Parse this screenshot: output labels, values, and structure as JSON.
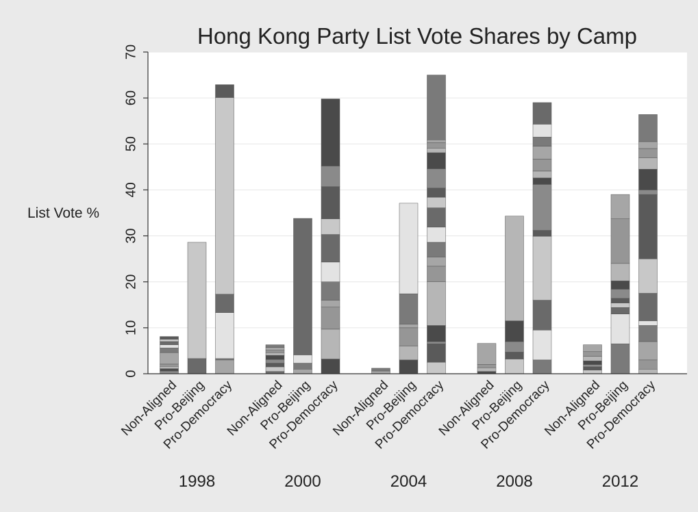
{
  "chart_data": {
    "type": "bar",
    "stacked": true,
    "title": "Hong Kong Party List Vote Shares by Camp",
    "ylabel": "List Vote %",
    "xlabel": "",
    "ylim": [
      0,
      70
    ],
    "yticks": [
      0,
      10,
      20,
      30,
      40,
      50,
      60,
      70
    ],
    "grid": true,
    "legend": "none",
    "colors": {
      "background": "#eaeaea",
      "plot": "#ffffff",
      "grid": "#e6e6e6",
      "palette": [
        "#8a8a8a",
        "#6a6a6a",
        "#a6a6a6",
        "#4a4a4a",
        "#c8c8c8",
        "#7a7a7a",
        "#b6b6b6",
        "#5a5a5a",
        "#e3e3e3",
        "#969696"
      ]
    },
    "groups": [
      {
        "year": "1998",
        "bars": [
          {
            "category": "Non-Aligned",
            "segments": [
              0.6,
              0.5,
              0.5,
              0.5,
              2.5,
              1.0,
              0.7,
              0.7,
              0.5,
              0.6
            ]
          },
          {
            "category": "Pro-Beijing",
            "segments": [
              3.3,
              25.3
            ]
          },
          {
            "category": "Pro-Democracy",
            "segments": [
              3.0,
              0.3,
              10.0,
              4.0,
              42.8,
              2.8
            ]
          }
        ]
      },
      {
        "year": "2000",
        "bars": [
          {
            "category": "Non-Aligned",
            "segments": [
              0.5,
              1.0,
              0.8,
              0.8,
              0.9,
              0.6,
              0.5,
              0.6,
              0.6
            ]
          },
          {
            "category": "Pro-Beijing",
            "segments": [
              1.0,
              1.3,
              1.8,
              29.7
            ]
          },
          {
            "category": "Pro-Democracy",
            "segments": [
              3.2,
              6.5,
              4.8,
              1.5,
              4.0,
              4.3,
              6.0,
              3.4,
              7.0,
              4.5,
              14.6
            ]
          }
        ]
      },
      {
        "year": "2004",
        "bars": [
          {
            "category": "Non-Aligned",
            "segments": [
              0.6,
              0.6
            ]
          },
          {
            "category": "Pro-Beijing",
            "segments": [
              3.0,
              3.0,
              4.0,
              0.8,
              6.6,
              19.7
            ]
          },
          {
            "category": "Pro-Democracy",
            "segments": [
              2.5,
              4.0,
              0.5,
              3.5,
              9.5,
              3.4,
              2.0,
              3.2,
              3.3,
              4.2,
              2.3,
              2.0,
              4.2,
              3.5,
              1.0,
              1.2,
              0.6,
              14.1
            ]
          }
        ]
      },
      {
        "year": "2008",
        "bars": [
          {
            "category": "Non-Aligned",
            "segments": [
              0.5,
              0.8,
              0.7,
              4.6
            ]
          },
          {
            "category": "Pro-Beijing",
            "segments": [
              3.2,
              1.5,
              2.3,
              4.5,
              22.8
            ]
          },
          {
            "category": "Pro-Democracy",
            "segments": [
              3.0,
              6.5,
              6.5,
              13.9,
              1.3,
              10.0,
              1.4,
              1.5,
              2.6,
              2.8,
              2.0,
              2.8,
              4.7
            ]
          }
        ]
      },
      {
        "year": "2012",
        "bars": [
          {
            "category": "Non-Aligned",
            "segments": [
              0.8,
              0.7,
              0.5,
              0.8,
              1.0,
              1.0,
              1.5
            ]
          },
          {
            "category": "Pro-Beijing",
            "segments": [
              6.5,
              6.5,
              1.4,
              1.0,
              1.0,
              2.0,
              1.8,
              3.8,
              9.7,
              5.3
            ]
          },
          {
            "category": "Pro-Democracy",
            "segments": [
              1.0,
              2.0,
              4.0,
              3.5,
              1.0,
              6.0,
              7.5,
              14.0,
              1.0,
              4.5,
              2.5,
              2.0,
              1.5,
              5.9
            ]
          }
        ]
      }
    ]
  }
}
